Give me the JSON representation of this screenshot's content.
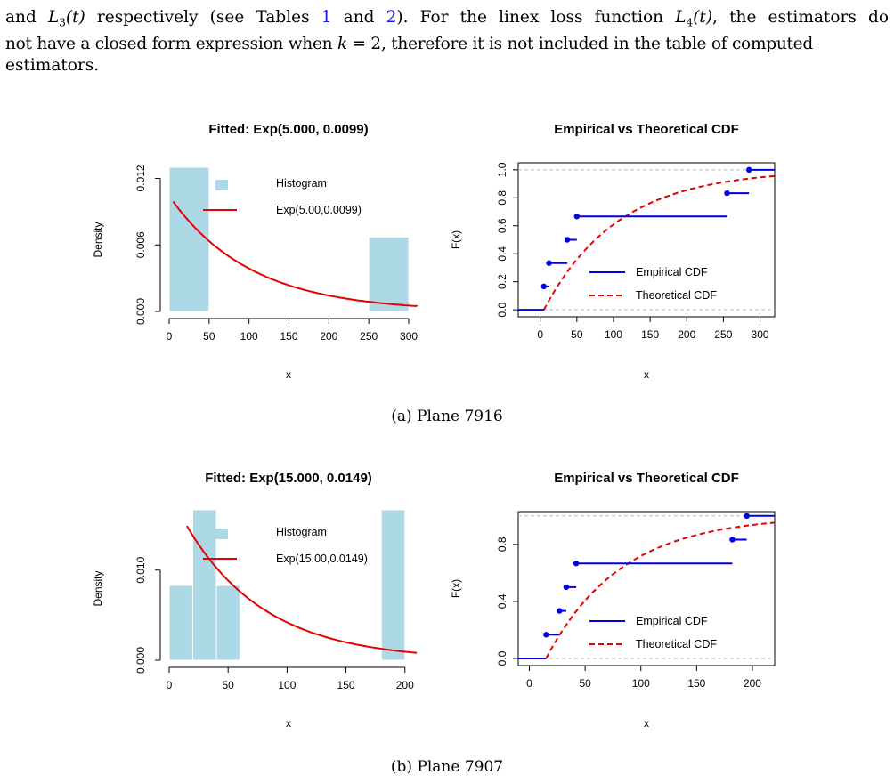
{
  "paragraph": {
    "line1_a": "and ",
    "line1_m1": "L",
    "line1_m1sub": "3",
    "line1_m1arg": "(t)",
    "line1_b": " respectively (see Tables ",
    "line1_ref1": "1",
    "line1_c": " and ",
    "line1_ref2": "2",
    "line1_d": "). For the linex loss function ",
    "line1_m2": "L",
    "line1_m2sub": "4",
    "line1_m2arg": "(t)",
    "line1_e": ", the estimators do",
    "line2_a": "not have a closed form expression when ",
    "line2_m": "k",
    "line2_eq": " = 2",
    "line2_b": ", therefore it is not included in the table of computed",
    "line3": "estimators."
  },
  "captions": {
    "a": "(a) Plane 7916",
    "b": "(b) Plane 7907"
  },
  "colors": {
    "hist_fill": "#add8e6",
    "fitted_line": "#e60000",
    "empirical": "#0000e6",
    "theoretical": "#e60000",
    "refline": "#bbbbbb"
  },
  "chart_data": [
    {
      "type": "bar",
      "title": "Fitted: Exp(5.000, 0.0099)",
      "xlabel": "x",
      "ylabel": "Density",
      "xlim": [
        0,
        310
      ],
      "ylim": [
        0,
        0.013
      ],
      "x_ticks": [
        "0",
        "50",
        "100",
        "150",
        "200",
        "250",
        "300"
      ],
      "y_ticks": [
        "0.000",
        "0.006",
        "0.012"
      ],
      "bins": [
        {
          "x0": 0,
          "x1": 50,
          "density": 0.013
        },
        {
          "x0": 250,
          "x1": 300,
          "density": 0.0067
        }
      ],
      "curve": {
        "name": "Exp(5.00,0.0099)",
        "location": 5.0,
        "rate": 0.0099,
        "x_from": 5,
        "x_to": 315
      },
      "legend": {
        "entries": [
          "Histogram",
          "Exp(5.00,0.0099)"
        ],
        "placement": "top-right"
      }
    },
    {
      "type": "line",
      "title": "Empirical vs Theoretical CDF",
      "xlabel": "x",
      "ylabel": "F(x)",
      "xlim": [
        -30,
        320
      ],
      "ylim": [
        0,
        1.05
      ],
      "x_ticks": [
        "0",
        "50",
        "100",
        "150",
        "200",
        "250",
        "300"
      ],
      "y_ticks": [
        "0.0",
        "0.2",
        "0.4",
        "0.6",
        "0.8",
        "1.0"
      ],
      "empirical_steps": [
        {
          "x": 5,
          "to": 12,
          "y": 0.1667
        },
        {
          "x": 12,
          "to": 37,
          "y": 0.3333
        },
        {
          "x": 37,
          "to": 50,
          "y": 0.5
        },
        {
          "x": 50,
          "to": 255,
          "y": 0.6667
        },
        {
          "x": 255,
          "to": 285,
          "y": 0.8333
        },
        {
          "x": 285,
          "to": 320,
          "y": 1.0
        }
      ],
      "theoretical": {
        "location": 5.0,
        "rate": 0.0099
      },
      "legend": {
        "entries": [
          "Empirical CDF",
          "Theoretical CDF"
        ],
        "placement": "bottom-right"
      }
    },
    {
      "type": "bar",
      "title": "Fitted: Exp(15.000, 0.0149)",
      "xlabel": "x",
      "ylabel": "Density",
      "xlim": [
        0,
        210
      ],
      "ylim": [
        0,
        0.016
      ],
      "x_ticks": [
        "0",
        "50",
        "100",
        "150",
        "200"
      ],
      "y_ticks": [
        "0.000",
        "0.010"
      ],
      "bins": [
        {
          "x0": 0,
          "x1": 20,
          "density": 0.0083
        },
        {
          "x0": 20,
          "x1": 40,
          "density": 0.0167
        },
        {
          "x0": 40,
          "x1": 60,
          "density": 0.0083
        },
        {
          "x0": 180,
          "x1": 200,
          "density": 0.0167
        }
      ],
      "curve": {
        "name": "Exp(15.00,0.0149)",
        "location": 15.0,
        "rate": 0.0149,
        "x_from": 15,
        "x_to": 210
      },
      "legend": {
        "entries": [
          "Histogram",
          "Exp(15.00,0.0149)"
        ],
        "placement": "top-right"
      }
    },
    {
      "type": "line",
      "title": "Empirical vs Theoretical CDF",
      "xlabel": "x",
      "ylabel": "F(x)",
      "xlim": [
        -10,
        220
      ],
      "ylim": [
        0,
        1.03
      ],
      "x_ticks": [
        "0",
        "50",
        "100",
        "150",
        "200"
      ],
      "y_ticks": [
        "0.0",
        "0.4",
        "0.8"
      ],
      "empirical_steps": [
        {
          "x": 15,
          "to": 27,
          "y": 0.1667
        },
        {
          "x": 27,
          "to": 33,
          "y": 0.3333
        },
        {
          "x": 33,
          "to": 42,
          "y": 0.5
        },
        {
          "x": 42,
          "to": 182,
          "y": 0.6667
        },
        {
          "x": 182,
          "to": 195,
          "y": 0.8333
        },
        {
          "x": 195,
          "to": 220,
          "y": 1.0
        }
      ],
      "theoretical": {
        "location": 15.0,
        "rate": 0.0149
      },
      "legend": {
        "entries": [
          "Empirical CDF",
          "Theoretical CDF"
        ],
        "placement": "bottom-right"
      }
    }
  ]
}
